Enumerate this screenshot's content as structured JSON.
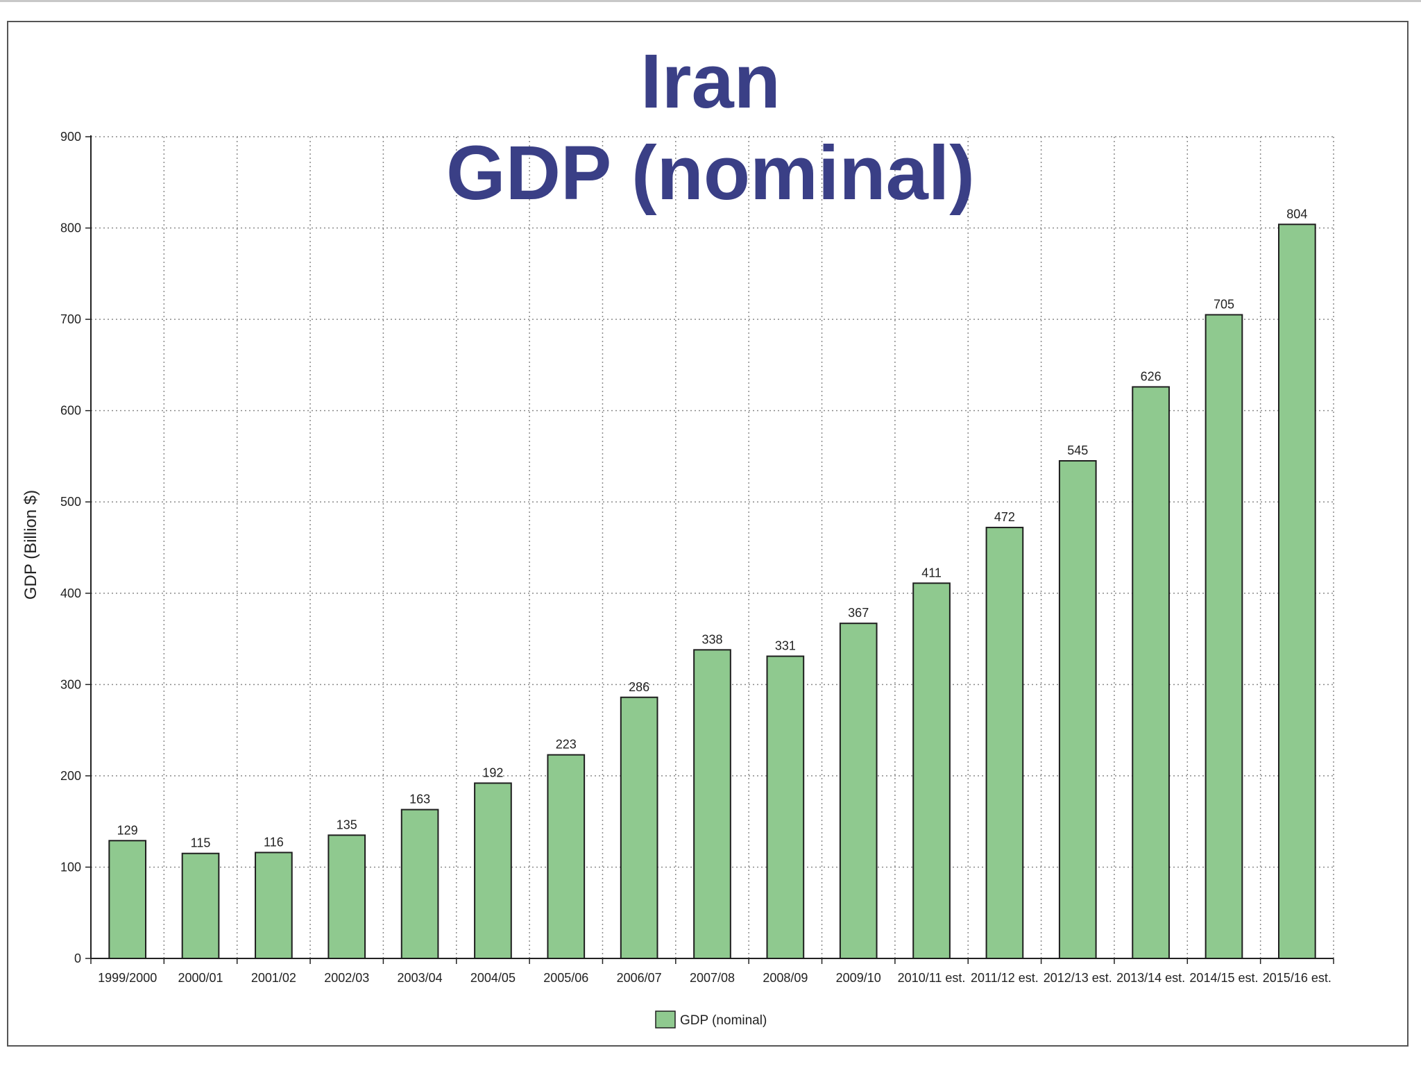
{
  "chart_data": {
    "type": "bar",
    "title": "Iran",
    "subtitle": "GDP (nominal)",
    "ylabel": "GDP (Billion $)",
    "xlabel": "",
    "ylim": [
      0,
      900
    ],
    "yticks": [
      0,
      100,
      200,
      300,
      400,
      500,
      600,
      700,
      800,
      900
    ],
    "grid": true,
    "legend_position": "bottom-center",
    "categories": [
      "1999/2000",
      "2000/01",
      "2001/02",
      "2002/03",
      "2003/04",
      "2004/05",
      "2005/06",
      "2006/07",
      "2007/08",
      "2008/09",
      "2009/10",
      "2010/11 est.",
      "2011/12 est.",
      "2012/13 est.",
      "2013/14 est.",
      "2014/15 est.",
      "2015/16 est."
    ],
    "series": [
      {
        "name": "GDP (nominal)",
        "color": "#8fc98f",
        "values": [
          129,
          115,
          116,
          135,
          163,
          192,
          223,
          286,
          338,
          331,
          367,
          411,
          472,
          545,
          626,
          705,
          804
        ]
      }
    ]
  },
  "colors": {
    "title": "#3a3f86",
    "bar_fill": "#8fc98f",
    "bar_stroke": "#1e1e1e",
    "grid": "#8a8a8a"
  }
}
